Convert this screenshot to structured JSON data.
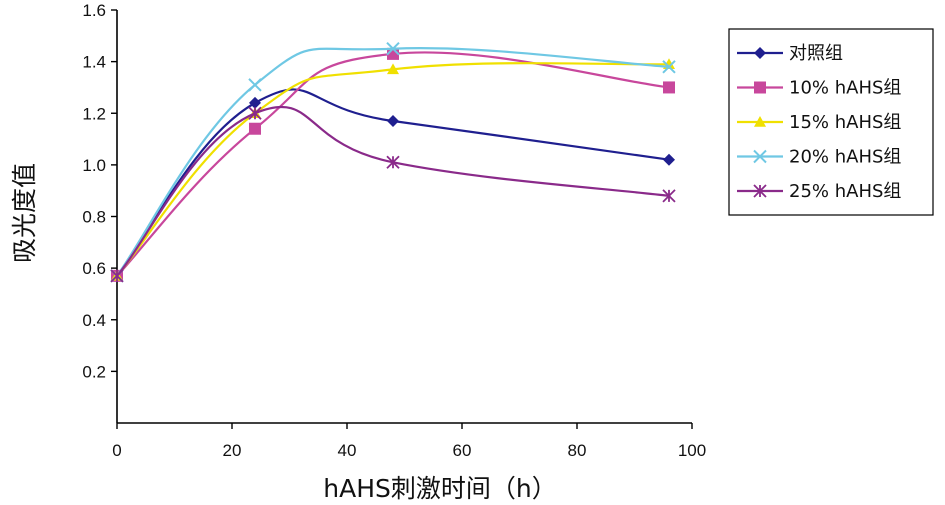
{
  "chart_data": {
    "type": "line",
    "xlabel": "hAHS刺激时间（h）",
    "ylabel": "吸光度值",
    "xlim": [
      0,
      100
    ],
    "ylim": [
      0,
      1.6
    ],
    "x_ticks": [
      "0",
      "20",
      "40",
      "60",
      "80",
      "100"
    ],
    "y_ticks": [
      "0.2",
      "0.4",
      "0.6",
      "0.8",
      "1.0",
      "1.2",
      "1.4",
      "1.6"
    ],
    "legend_position": "right",
    "x": [
      0,
      24,
      48,
      96
    ],
    "series": [
      {
        "name": "对照组",
        "values": [
          0.57,
          1.24,
          1.17,
          1.02
        ],
        "color": "#1f1f8f",
        "marker": "diamond"
      },
      {
        "name": "10% hAHS组",
        "values": [
          0.57,
          1.14,
          1.43,
          1.3
        ],
        "color": "#c8479c",
        "marker": "square"
      },
      {
        "name": "15% hAHS组",
        "values": [
          0.57,
          1.2,
          1.37,
          1.39
        ],
        "color": "#f0e000",
        "marker": "triangle"
      },
      {
        "name": "20% hAHS组",
        "values": [
          0.57,
          1.31,
          1.45,
          1.38
        ],
        "color": "#6fc8e4",
        "marker": "x"
      },
      {
        "name": "25% hAHS组",
        "values": [
          0.57,
          1.2,
          1.01,
          0.88
        ],
        "color": "#8a2a8a",
        "marker": "star"
      }
    ]
  }
}
